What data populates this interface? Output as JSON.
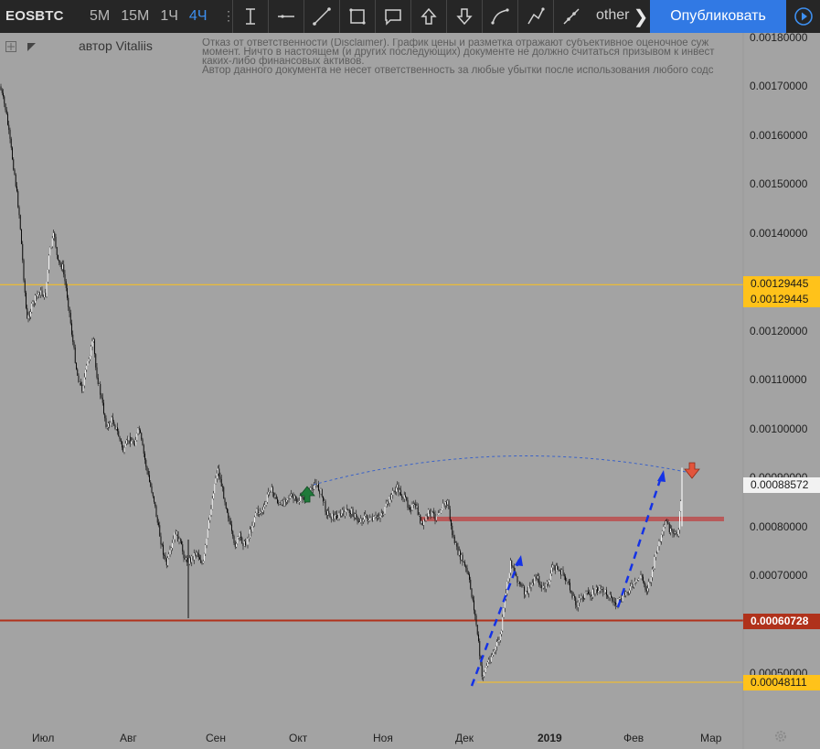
{
  "toolbar": {
    "symbol": "EOSBTC",
    "intervals": [
      "5M",
      "15M",
      "1Ч",
      "4Ч"
    ],
    "active_interval": "4Ч",
    "more_label": "other",
    "publish_label": "Опубликовать"
  },
  "drawing_tools": [
    "cursor-text-tool-icon",
    "horizontal-line-icon",
    "trend-line-icon",
    "rectangle-icon",
    "comment-icon",
    "arrow-up-icon",
    "arrow-down-icon",
    "curve-tool-icon",
    "path-tool-icon",
    "ray-tool-icon"
  ],
  "author": "автор Vitaliis",
  "disclaimer": [
    "Отказ от ответственности (Disclaimer). График цены и разметка отражают субъективное оценочное суж",
    "момент. Ничто в настоящем (и других последующих) документе не должно считаться призывом к инвест",
    "каких-либо финансовых активов.",
    "Автор данного документа не несет ответственность за любые убытки после использования любого содс"
  ],
  "price_axis": [
    "0.00180000",
    "0.00170000",
    "0.00160000",
    "0.00150000",
    "0.00140000",
    "0.00130000",
    "0.00120000",
    "0.00110000",
    "0.00100000",
    "0.00090000",
    "0.00080000",
    "0.00070000",
    "0.00060000",
    "0.00050000"
  ],
  "price_tags": {
    "hline_top_a": "0.00129445",
    "hline_top_b": "0.00129445",
    "last_price": "0.00088572",
    "support_red": "0.00060728",
    "low_line": "0.00048111"
  },
  "time_axis": [
    "Июл",
    "Авг",
    "Сен",
    "Окт",
    "Ноя",
    "Дек",
    "2019",
    "Фев",
    "Мар"
  ],
  "colors": {
    "background": "#a3a3a3",
    "toolbar": "#262626",
    "accent_blue": "#3179e4",
    "active_interval": "#3d8ff0",
    "yellow_line": "#ffc21a",
    "red_line": "#b0321b",
    "resistance_band": "#b85a5a",
    "projection_arrow": "#1432e6",
    "arc_dashed": "#3a62c8",
    "buy_arrow": "#1f7a3a",
    "sell_arrow": "#e2553c"
  },
  "chart_data": {
    "type": "candlestick",
    "symbol": "EOSBTC",
    "timeframe": "4Ч",
    "x_axis_ticks": [
      "Июл",
      "Авг",
      "Сен",
      "Окт",
      "Ноя",
      "Дек",
      "2019",
      "Фев",
      "Мар"
    ],
    "y_range": [
      0.00046,
      0.00182
    ],
    "price_path": [
      [
        0.0,
        0.0017
      ],
      [
        0.0065,
        0.00165
      ],
      [
        0.0115,
        0.00158
      ],
      [
        0.016,
        0.00152
      ],
      [
        0.0215,
        0.00143
      ],
      [
        0.026,
        0.00131
      ],
      [
        0.0295,
        0.00122
      ],
      [
        0.033,
        0.00124
      ],
      [
        0.037,
        0.00126
      ],
      [
        0.043,
        0.00128
      ],
      [
        0.0495,
        0.00127
      ],
      [
        0.054,
        0.00136
      ],
      [
        0.0595,
        0.0014
      ],
      [
        0.063,
        0.00134
      ],
      [
        0.0685,
        0.00133
      ],
      [
        0.0745,
        0.00126
      ],
      [
        0.0795,
        0.00118
      ],
      [
        0.0845,
        0.00111
      ],
      [
        0.0895,
        0.00108
      ],
      [
        0.0965,
        0.00114
      ],
      [
        0.102,
        0.00118
      ],
      [
        0.105,
        0.00112
      ],
      [
        0.112,
        0.00105
      ],
      [
        0.117,
        0.001
      ],
      [
        0.123,
        0.00102
      ],
      [
        0.129,
        0.00099
      ],
      [
        0.1355,
        0.00095
      ],
      [
        0.14,
        0.00098
      ],
      [
        0.147,
        0.00097
      ],
      [
        0.152,
        0.001
      ],
      [
        0.158,
        0.00094
      ],
      [
        0.1635,
        0.00089
      ],
      [
        0.168,
        0.00086
      ],
      [
        0.172,
        0.00081
      ],
      [
        0.177,
        0.00076
      ],
      [
        0.182,
        0.00072
      ],
      [
        0.187,
        0.00075
      ],
      [
        0.192,
        0.00079
      ],
      [
        0.198,
        0.00076
      ],
      [
        0.203,
        0.00073
      ],
      [
        0.208,
        0.00073
      ],
      [
        0.215,
        0.00075
      ],
      [
        0.222,
        0.00072
      ],
      [
        0.228,
        0.0008
      ],
      [
        0.234,
        0.00088
      ],
      [
        0.238,
        0.00092
      ],
      [
        0.244,
        0.00087
      ],
      [
        0.25,
        0.00082
      ],
      [
        0.256,
        0.00076
      ],
      [
        0.262,
        0.00078
      ],
      [
        0.268,
        0.00076
      ],
      [
        0.274,
        0.00079
      ],
      [
        0.28,
        0.00083
      ],
      [
        0.288,
        0.00083
      ],
      [
        0.295,
        0.00088
      ],
      [
        0.301,
        0.00086
      ],
      [
        0.307,
        0.00084
      ],
      [
        0.313,
        0.00086
      ],
      [
        0.319,
        0.00086
      ],
      [
        0.325,
        0.00085
      ],
      [
        0.331,
        0.00086
      ],
      [
        0.337,
        0.00086
      ],
      [
        0.344,
        0.00089
      ],
      [
        0.351,
        0.00087
      ],
      [
        0.357,
        0.00083
      ],
      [
        0.363,
        0.00082
      ],
      [
        0.37,
        0.00082
      ],
      [
        0.378,
        0.00083
      ],
      [
        0.385,
        0.00083
      ],
      [
        0.392,
        0.00081
      ],
      [
        0.399,
        0.00082
      ],
      [
        0.406,
        0.00081
      ],
      [
        0.413,
        0.00082
      ],
      [
        0.42,
        0.00083
      ],
      [
        0.427,
        0.00086
      ],
      [
        0.434,
        0.00088
      ],
      [
        0.441,
        0.00086
      ],
      [
        0.448,
        0.00084
      ],
      [
        0.455,
        0.00084
      ],
      [
        0.462,
        0.0008
      ],
      [
        0.469,
        0.00083
      ],
      [
        0.476,
        0.00082
      ],
      [
        0.483,
        0.00084
      ],
      [
        0.49,
        0.00085
      ],
      [
        0.494,
        0.00079
      ],
      [
        0.5,
        0.00075
      ],
      [
        0.506,
        0.00073
      ],
      [
        0.512,
        0.0007
      ],
      [
        0.518,
        0.00064
      ],
      [
        0.523,
        0.00057
      ],
      [
        0.527,
        0.00049
      ],
      [
        0.531,
        0.00051
      ],
      [
        0.536,
        0.00053
      ],
      [
        0.542,
        0.00055
      ],
      [
        0.548,
        0.00058
      ],
      [
        0.553,
        0.00066
      ],
      [
        0.559,
        0.00073
      ],
      [
        0.564,
        0.0007
      ],
      [
        0.569,
        0.00068
      ],
      [
        0.575,
        0.00066
      ],
      [
        0.581,
        0.00068
      ],
      [
        0.587,
        0.0007
      ],
      [
        0.593,
        0.00067
      ],
      [
        0.599,
        0.00068
      ],
      [
        0.605,
        0.00072
      ],
      [
        0.611,
        0.00071
      ],
      [
        0.617,
        0.0007
      ],
      [
        0.624,
        0.00067
      ],
      [
        0.631,
        0.00064
      ],
      [
        0.638,
        0.00066
      ],
      [
        0.645,
        0.00066
      ],
      [
        0.652,
        0.00067
      ],
      [
        0.659,
        0.00067
      ],
      [
        0.666,
        0.00066
      ],
      [
        0.673,
        0.00064
      ],
      [
        0.68,
        0.00065
      ],
      [
        0.687,
        0.00067
      ],
      [
        0.694,
        0.00068
      ],
      [
        0.701,
        0.0007
      ],
      [
        0.707,
        0.00067
      ],
      [
        0.713,
        0.0007
      ],
      [
        0.718,
        0.00075
      ],
      [
        0.724,
        0.00078
      ],
      [
        0.729,
        0.00081
      ],
      [
        0.733,
        0.00079
      ],
      [
        0.737,
        0.00078
      ],
      [
        0.742,
        0.00079
      ],
      [
        0.746,
        0.000886
      ]
    ],
    "horizontal_lines": [
      {
        "price": 0.00129445,
        "color": "yellow"
      },
      {
        "price": 0.00060728,
        "color": "red"
      },
      {
        "price": 0.00048111,
        "color": "yellow"
      }
    ],
    "resistance_zone": {
      "price": 0.000815
    },
    "last_price": 0.00088572
  }
}
